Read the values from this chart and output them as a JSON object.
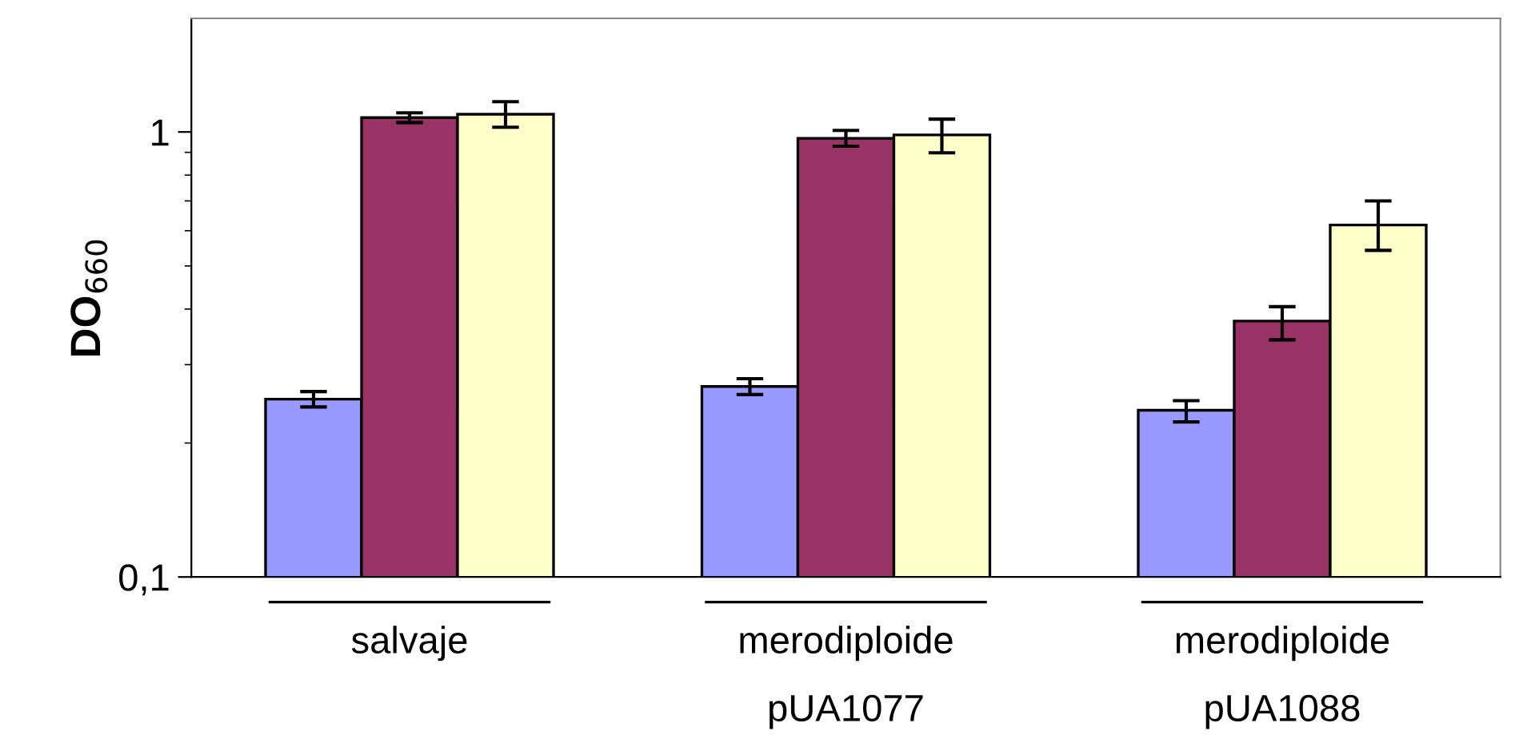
{
  "chart_data": {
    "type": "bar",
    "ylabel": "DO$_{660}$",
    "categories": [
      "salvaje",
      "merodiploide\npUA1077",
      "merodiploide\npUA1088"
    ],
    "series": [
      {
        "color": "#9999ff",
        "values": [
          0.251,
          0.268,
          0.237
        ],
        "errors": [
          [
            0.241,
            0.261
          ],
          [
            0.257,
            0.279
          ],
          [
            0.223,
            0.249
          ]
        ]
      },
      {
        "color": "#993366",
        "values": [
          1.077,
          0.968,
          0.376
        ],
        "errors": [
          [
            1.05,
            1.104
          ],
          [
            0.929,
            1.008
          ],
          [
            0.341,
            0.405
          ]
        ]
      },
      {
        "color": "#ffffcc",
        "values": [
          1.096,
          0.985,
          0.618
        ],
        "errors": [
          [
            1.025,
            1.17
          ],
          [
            0.898,
            1.069
          ],
          [
            0.542,
            0.7
          ]
        ]
      }
    ],
    "log": "y",
    "ylim": [
      0.1,
      1.8
    ],
    "yticks": [
      {
        "value": 0.1,
        "label": "0,1"
      },
      1
    ],
    "grid": false,
    "legend": false
  }
}
